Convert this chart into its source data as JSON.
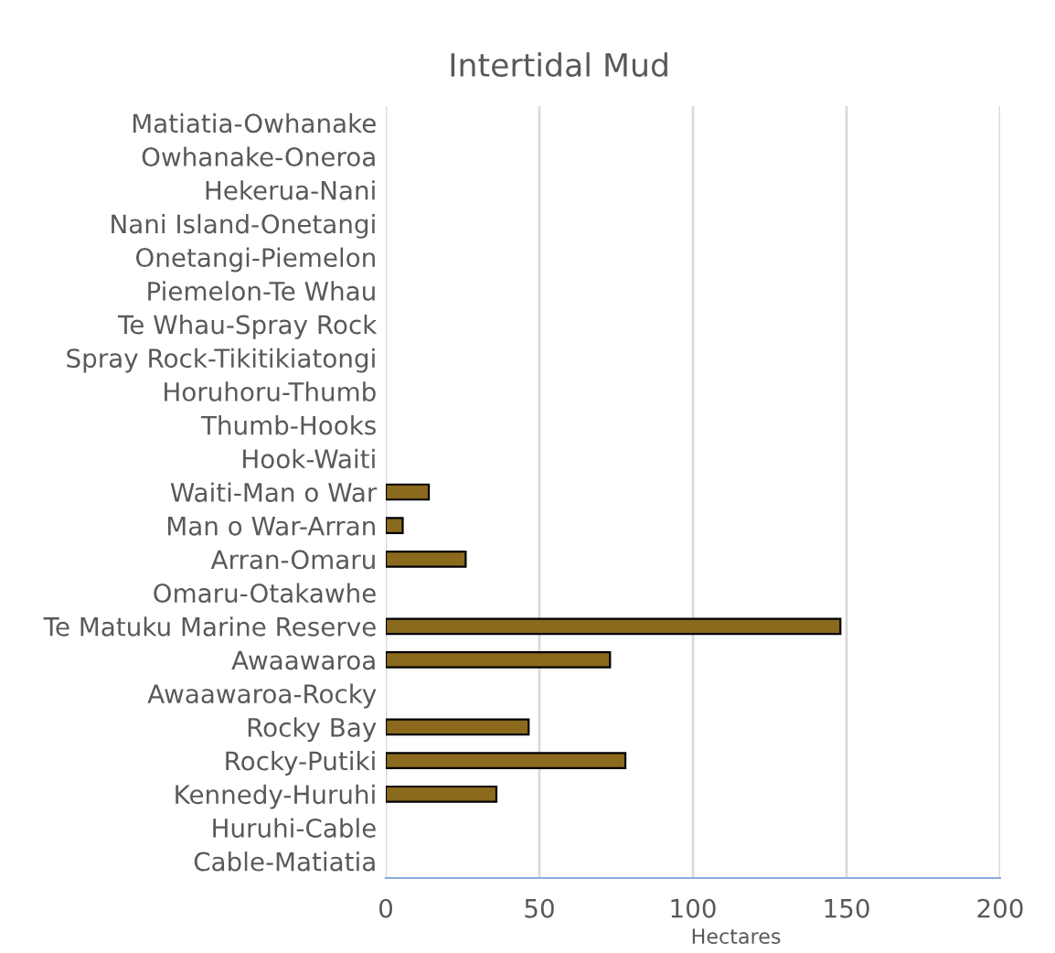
{
  "chart_data": {
    "type": "bar",
    "orientation": "horizontal",
    "title": "Intertidal Mud",
    "xlabel": "Hectares",
    "categories": [
      "Matiatia-Owhanake",
      "Owhanake-Oneroa",
      "Hekerua-Nani",
      "Nani Island-Onetangi",
      "Onetangi-Piemelon",
      "Piemelon-Te Whau",
      "Te Whau-Spray Rock",
      "Spray Rock-Tikitikiatongi",
      "Horuhoru-Thumb",
      "Thumb-Hooks",
      "Hook-Waiti",
      "Waiti-Man o War",
      "Man o War-Arran",
      "Arran-Omaru",
      "Omaru-Otakawhe",
      "Te Matuku Marine Reserve",
      "Awaawaroa",
      "Awaawaroa-Rocky",
      "Rocky Bay",
      "Rocky-Putiki",
      "Kennedy-Huruhi",
      "Huruhi-Cable",
      "Cable-Matiatia"
    ],
    "values": [
      null,
      null,
      null,
      null,
      null,
      null,
      null,
      null,
      null,
      null,
      null,
      14,
      5.5,
      26,
      null,
      148,
      73,
      null,
      46.5,
      78,
      36,
      null,
      null
    ],
    "color": "#8b6a1e",
    "xlim": [
      0,
      200
    ],
    "xticks": [
      0,
      50,
      100,
      150,
      200
    ],
    "grid": "x",
    "legend": false
  }
}
